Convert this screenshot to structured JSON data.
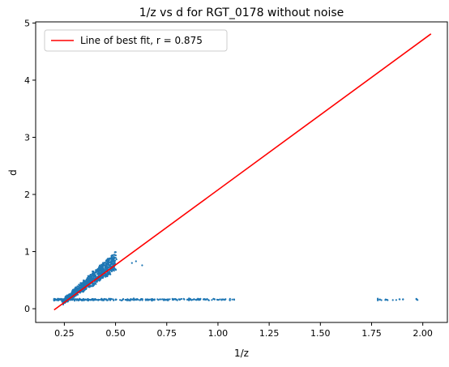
{
  "chart_data": {
    "type": "scatter",
    "title": "1/z vs d for RGT_0178 without noise",
    "xlabel": "1/z",
    "ylabel": "d",
    "xlim": [
      0.11,
      2.12
    ],
    "ylim": [
      -0.24,
      5.02
    ],
    "xticks": [
      "0.25",
      "0.50",
      "0.75",
      "1.00",
      "1.25",
      "1.50",
      "1.75",
      "2.00"
    ],
    "yticks": [
      "0",
      "1",
      "2",
      "3",
      "4",
      "5"
    ],
    "grid": false,
    "legend_position": "top-left",
    "colors": {
      "scatter": "#1f77b4",
      "fit_line": "#ff0000"
    },
    "series": [
      {
        "type": "scatter",
        "clusters": [
          {
            "kind": "diagonal",
            "x_range": [
              0.24,
              0.5
            ],
            "y_range": [
              0.15,
              0.99
            ],
            "approx_points": 900
          },
          {
            "kind": "horizontal",
            "x_range": [
              0.2,
              1.09
            ],
            "y_value": 0.16,
            "approx_points": 350
          },
          {
            "kind": "horizontal",
            "x_range": [
              1.78,
              2.04
            ],
            "y_value": 0.16,
            "approx_points": 20
          },
          {
            "kind": "outliers",
            "points": [
              [
                0.58,
                0.8
              ],
              [
                0.6,
                0.83
              ],
              [
                0.63,
                0.76
              ]
            ]
          }
        ]
      },
      {
        "type": "line",
        "name": "Line of best fit, r = 0.875",
        "x": [
          0.2,
          2.04
        ],
        "y": [
          -0.02,
          4.81
        ]
      }
    ]
  }
}
